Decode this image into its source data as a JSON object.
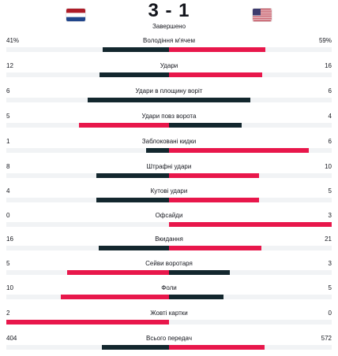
{
  "match": {
    "score": "3 - 1",
    "status": "Завершено",
    "home_flag_icon": "netherlands-flag-icon",
    "away_flag_icon": "usa-flag-icon"
  },
  "colors": {
    "dark": "#13272e",
    "red": "#e8174b",
    "track": "#f1f3f5",
    "text": "#14161d"
  },
  "stats": [
    {
      "label": "Володіння м'ячем",
      "home": "41%",
      "away": "59%",
      "home_value": 41,
      "away_value": 59,
      "leader": "away"
    },
    {
      "label": "Удари",
      "home": "12",
      "away": "16",
      "home_value": 12,
      "away_value": 16,
      "leader": "away"
    },
    {
      "label": "Удари в площину воріт",
      "home": "6",
      "away": "6",
      "home_value": 6,
      "away_value": 6,
      "leader": "none"
    },
    {
      "label": "Удари повз ворота",
      "home": "5",
      "away": "4",
      "home_value": 5,
      "away_value": 4,
      "leader": "home"
    },
    {
      "label": "Заблоковані кидки",
      "home": "1",
      "away": "6",
      "home_value": 1,
      "away_value": 6,
      "leader": "away"
    },
    {
      "label": "Штрафні удари",
      "home": "8",
      "away": "10",
      "home_value": 8,
      "away_value": 10,
      "leader": "away"
    },
    {
      "label": "Кутові удари",
      "home": "4",
      "away": "5",
      "home_value": 4,
      "away_value": 5,
      "leader": "away"
    },
    {
      "label": "Офсайди",
      "home": "0",
      "away": "3",
      "home_value": 0,
      "away_value": 3,
      "leader": "away"
    },
    {
      "label": "Вкидання",
      "home": "16",
      "away": "21",
      "home_value": 16,
      "away_value": 21,
      "leader": "away"
    },
    {
      "label": "Сейви воротаря",
      "home": "5",
      "away": "3",
      "home_value": 5,
      "away_value": 3,
      "leader": "home"
    },
    {
      "label": "Фоли",
      "home": "10",
      "away": "5",
      "home_value": 10,
      "away_value": 5,
      "leader": "home"
    },
    {
      "label": "Жовті картки",
      "home": "2",
      "away": "0",
      "home_value": 2,
      "away_value": 0,
      "leader": "home"
    },
    {
      "label": "Всього передач",
      "home": "404",
      "away": "572",
      "home_value": 404,
      "away_value": 572,
      "leader": "away"
    }
  ]
}
